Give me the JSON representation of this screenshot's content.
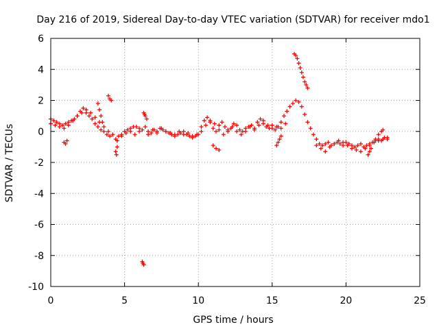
{
  "chart_data": {
    "type": "scatter",
    "title": "Day 216 of 2019, Sidereal Day-to-day VTEC variation (SDTVAR) for receiver mdo1",
    "xlabel": "GPS time / hours",
    "ylabel": "SDTVAR / TECUs",
    "xlim": [
      0,
      25
    ],
    "ylim": [
      -10,
      6
    ],
    "xticks": [
      0,
      5,
      10,
      15,
      20,
      25
    ],
    "yticks": [
      -10,
      -8,
      -6,
      -4,
      -2,
      0,
      2,
      4,
      6
    ],
    "grid": true,
    "marker": "+",
    "series": [
      {
        "name": "SDTVAR",
        "color": "#ff0000",
        "x": [
          0.0,
          0.2,
          0.4,
          0.6,
          0.8,
          1.0,
          1.2,
          1.4,
          1.6,
          1.8,
          2.0,
          2.2,
          2.4,
          2.6,
          2.8,
          3.0,
          3.2,
          3.4,
          3.6,
          3.8,
          4.0,
          4.2,
          4.4,
          4.6,
          4.8,
          5.0,
          5.2,
          5.4,
          5.6,
          5.8,
          6.0,
          6.2,
          6.4,
          6.6,
          6.8,
          7.0,
          7.2,
          7.4,
          7.6,
          7.8,
          8.0,
          8.2,
          8.4,
          8.6,
          8.8,
          9.0,
          9.2,
          9.4,
          9.6,
          9.8,
          10.0,
          10.2,
          10.4,
          10.6,
          10.8,
          11.0,
          11.2,
          11.4,
          11.6,
          11.8,
          12.0,
          12.2,
          12.4,
          12.6,
          12.8,
          13.0,
          13.2,
          13.4,
          13.6,
          13.8,
          14.0,
          14.2,
          14.4,
          14.6,
          14.8,
          15.0,
          15.2,
          15.4,
          15.6,
          15.8,
          16.0,
          16.2,
          16.4,
          16.6,
          16.8,
          17.0,
          17.2,
          17.4,
          17.6,
          17.8,
          18.0,
          18.2,
          18.4,
          18.6,
          18.8,
          19.0,
          19.2,
          19.4,
          19.6,
          19.8,
          20.0,
          20.2,
          20.4,
          20.6,
          20.8,
          21.0,
          21.2,
          21.4,
          21.6,
          21.8,
          22.0,
          22.2,
          22.4,
          22.6,
          22.8,
          0.0,
          0.3,
          0.6,
          0.9,
          1.2,
          1.5,
          1.8,
          2.1,
          2.4,
          2.7,
          3.0,
          3.3,
          3.6,
          3.9,
          4.5,
          4.8,
          5.1,
          5.4,
          5.7,
          6.0,
          6.6,
          6.9,
          7.2,
          7.5,
          7.8,
          8.1,
          8.4,
          8.7,
          9.0,
          9.3,
          9.6,
          9.9,
          10.2,
          10.5,
          10.8,
          11.1,
          11.4,
          11.7,
          12.0,
          12.3,
          12.6,
          12.9,
          13.2,
          13.5,
          13.8,
          14.1,
          14.4,
          14.7,
          15.0,
          15.3,
          15.6,
          15.9,
          18.0,
          18.3,
          18.6,
          18.9,
          19.2,
          19.5,
          19.8,
          20.1,
          20.4,
          20.7,
          21.0,
          21.3,
          21.6,
          21.9,
          22.2,
          22.5,
          22.8,
          0.9,
          1.0,
          1.1,
          3.2,
          3.3,
          3.4,
          3.5,
          3.9,
          4.0,
          4.1,
          4.4,
          4.45,
          4.5,
          6.2,
          6.25,
          6.3,
          6.3,
          6.35,
          6.4,
          6.5,
          15.3,
          15.4,
          15.5,
          15.6,
          16.5,
          16.6,
          16.7,
          16.8,
          16.9,
          17.0,
          17.1,
          17.2,
          17.3,
          17.4,
          11.0,
          11.2,
          11.4,
          21.5,
          21.6,
          21.7,
          22.0,
          22.2,
          22.4,
          22.5
        ],
        "y": [
          0.8,
          0.7,
          0.6,
          0.5,
          0.4,
          0.5,
          0.6,
          0.7,
          0.8,
          1.0,
          1.3,
          1.5,
          1.2,
          1.0,
          0.8,
          0.5,
          0.3,
          0.1,
          0.0,
          -0.2,
          -0.3,
          -0.2,
          -0.5,
          -0.3,
          -0.2,
          0.0,
          0.1,
          0.2,
          0.3,
          0.3,
          0.2,
          0.1,
          0.3,
          0.0,
          -0.1,
          0.1,
          0.0,
          0.2,
          0.1,
          0.0,
          -0.1,
          -0.2,
          -0.3,
          -0.2,
          -0.1,
          0.0,
          -0.2,
          -0.3,
          -0.4,
          -0.3,
          -0.2,
          0.3,
          0.7,
          0.9,
          0.6,
          0.2,
          0.0,
          0.4,
          0.6,
          0.3,
          0.0,
          0.2,
          0.5,
          0.4,
          0.1,
          0.0,
          0.2,
          0.3,
          0.4,
          0.2,
          0.6,
          0.8,
          0.5,
          0.3,
          0.2,
          0.4,
          0.1,
          0.3,
          0.6,
          1.0,
          1.3,
          1.6,
          1.8,
          2.0,
          1.9,
          1.6,
          1.1,
          0.6,
          0.2,
          -0.2,
          -0.5,
          -0.8,
          -0.9,
          -0.8,
          -0.7,
          -0.9,
          -0.8,
          -0.7,
          -0.8,
          -0.9,
          -0.7,
          -0.8,
          -0.9,
          -1.0,
          -0.9,
          -0.8,
          -1.0,
          -0.9,
          -0.8,
          -0.7,
          -0.6,
          -0.5,
          -0.6,
          -0.4,
          -0.5,
          0.5,
          0.4,
          0.3,
          0.2,
          0.4,
          0.7,
          1.0,
          1.2,
          1.4,
          1.2,
          0.9,
          0.6,
          0.3,
          0.0,
          -0.6,
          -0.3,
          -0.1,
          0.0,
          -0.2,
          0.0,
          -0.2,
          0.1,
          -0.1,
          0.2,
          0.0,
          -0.1,
          -0.2,
          0.0,
          -0.2,
          -0.1,
          -0.3,
          -0.2,
          0.0,
          0.4,
          0.7,
          0.5,
          0.1,
          -0.2,
          0.1,
          0.3,
          0.0,
          -0.2,
          0.0,
          0.3,
          0.1,
          0.4,
          0.7,
          0.4,
          0.2,
          0.3,
          0.2,
          0.5,
          -0.9,
          -1.1,
          -1.3,
          -1.0,
          -0.8,
          -0.6,
          -0.7,
          -0.9,
          -1.1,
          -1.2,
          -1.3,
          -1.1,
          -0.9,
          -0.7,
          -0.6,
          -0.5,
          -0.4,
          -0.7,
          -0.8,
          -0.6,
          1.8,
          1.4,
          1.0,
          0.6,
          2.3,
          2.1,
          2.0,
          -1.3,
          -1.5,
          -1.0,
          -8.4,
          -8.5,
          -8.6,
          1.2,
          1.1,
          1.0,
          0.8,
          -0.9,
          -0.7,
          -0.5,
          -0.3,
          5.0,
          4.9,
          4.7,
          4.4,
          4.1,
          3.8,
          3.5,
          3.2,
          3.0,
          2.8,
          -0.9,
          -1.1,
          -1.2,
          -1.5,
          -1.3,
          -1.1,
          -0.5,
          -0.2,
          0.0,
          0.1
        ]
      }
    ]
  }
}
